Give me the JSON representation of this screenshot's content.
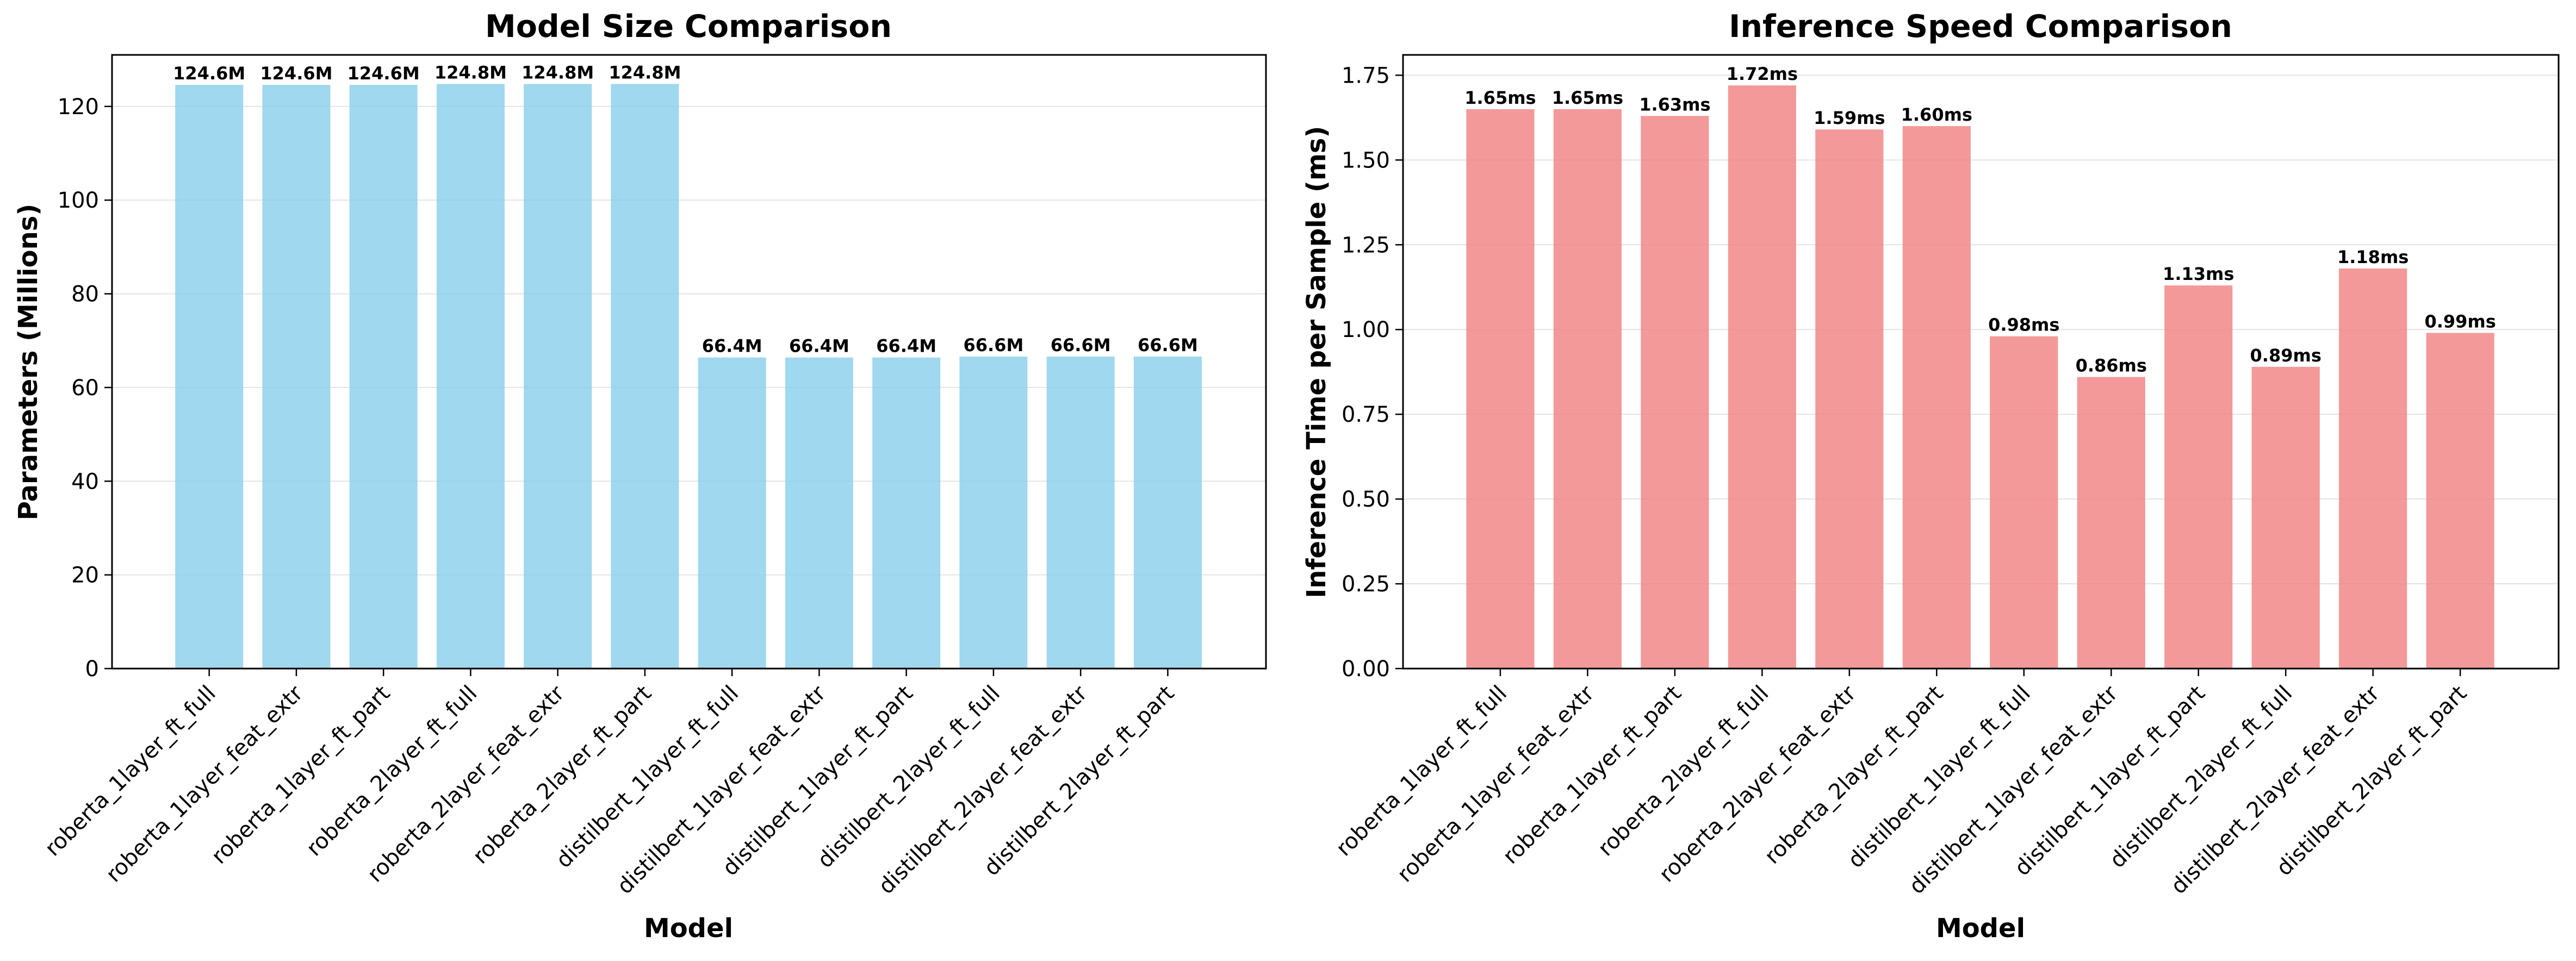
{
  "chart_data": [
    {
      "type": "bar",
      "title": "Model Size Comparison",
      "xlabel": "Model",
      "ylabel": "Parameters (Millions)",
      "ylim": [
        0,
        131
      ],
      "yticks": [
        0,
        20,
        40,
        60,
        80,
        100,
        120
      ],
      "ytick_labels": [
        "0",
        "20",
        "40",
        "60",
        "80",
        "100",
        "120"
      ],
      "grid": "horizontal",
      "bar_color": "#87ceeb",
      "categories": [
        "roberta_1layer_ft_full",
        "roberta_1layer_feat_extr",
        "roberta_1layer_ft_part",
        "roberta_2layer_ft_full",
        "roberta_2layer_feat_extr",
        "roberta_2layer_ft_part",
        "distilbert_1layer_ft_full",
        "distilbert_1layer_feat_extr",
        "distilbert_1layer_ft_part",
        "distilbert_2layer_ft_full",
        "distilbert_2layer_feat_extr",
        "distilbert_2layer_ft_part"
      ],
      "values": [
        124.6,
        124.6,
        124.6,
        124.8,
        124.8,
        124.8,
        66.4,
        66.4,
        66.4,
        66.6,
        66.6,
        66.6
      ],
      "value_labels": [
        "124.6M",
        "124.6M",
        "124.6M",
        "124.8M",
        "124.8M",
        "124.8M",
        "66.4M",
        "66.4M",
        "66.4M",
        "66.6M",
        "66.6M",
        "66.6M"
      ]
    },
    {
      "type": "bar",
      "title": "Inference Speed Comparison",
      "xlabel": "Model",
      "ylabel": "Inference Time per Sample (ms)",
      "ylim": [
        0,
        1.81
      ],
      "yticks": [
        0,
        0.25,
        0.5,
        0.75,
        1.0,
        1.25,
        1.5,
        1.75
      ],
      "ytick_labels": [
        "0.00",
        "0.25",
        "0.50",
        "0.75",
        "1.00",
        "1.25",
        "1.50",
        "1.75"
      ],
      "grid": "horizontal",
      "bar_color": "#f08080",
      "categories": [
        "roberta_1layer_ft_full",
        "roberta_1layer_feat_extr",
        "roberta_1layer_ft_part",
        "roberta_2layer_ft_full",
        "roberta_2layer_feat_extr",
        "roberta_2layer_ft_part",
        "distilbert_1layer_ft_full",
        "distilbert_1layer_feat_extr",
        "distilbert_1layer_ft_part",
        "distilbert_2layer_ft_full",
        "distilbert_2layer_feat_extr",
        "distilbert_2layer_ft_part"
      ],
      "values": [
        1.65,
        1.65,
        1.63,
        1.72,
        1.59,
        1.6,
        0.98,
        0.86,
        1.13,
        0.89,
        1.18,
        0.99
      ],
      "value_labels": [
        "1.65ms",
        "1.65ms",
        "1.63ms",
        "1.72ms",
        "1.59ms",
        "1.60ms",
        "0.98ms",
        "0.86ms",
        "1.13ms",
        "0.89ms",
        "1.18ms",
        "0.99ms"
      ]
    }
  ]
}
